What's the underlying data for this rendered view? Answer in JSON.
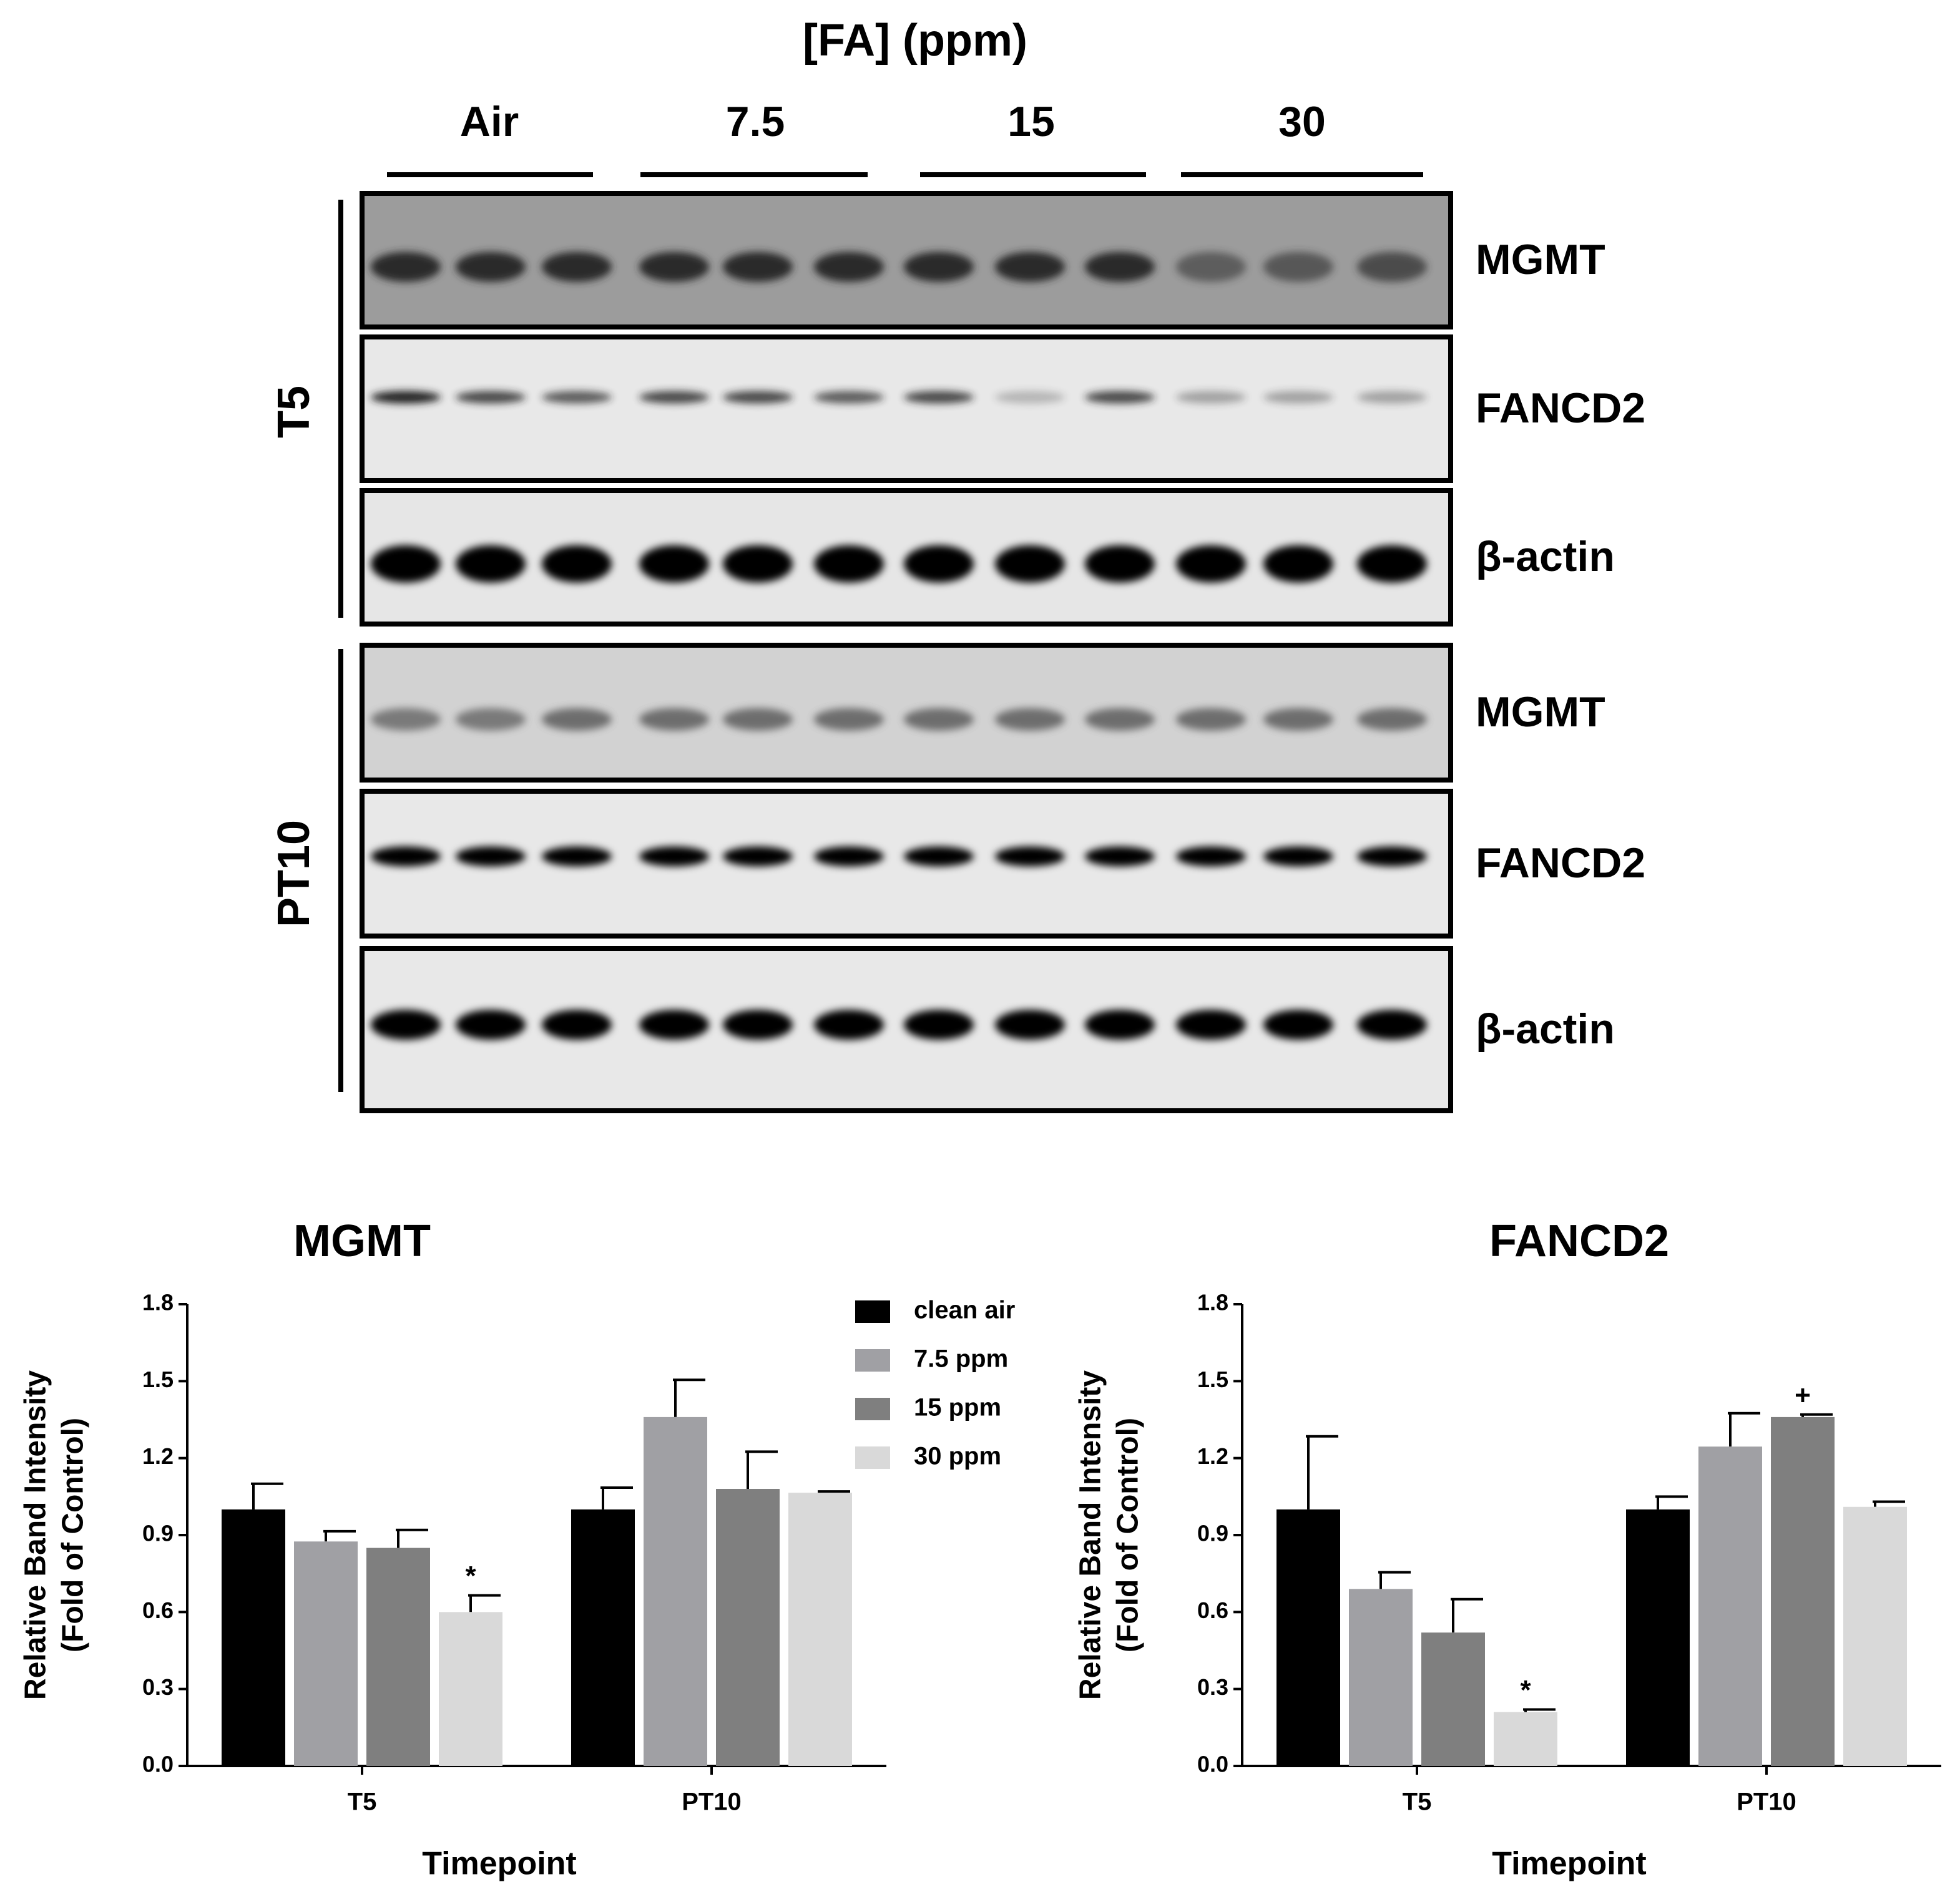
{
  "blot": {
    "title": "[FA] (ppm)",
    "groups": [
      "Air",
      "7.5",
      "15",
      "30"
    ],
    "timepoints": [
      "T5",
      "PT10"
    ],
    "proteins": [
      "MGMT",
      "FANCD2",
      "β-actin",
      "MGMT",
      "FANCD2",
      "β-actin"
    ]
  },
  "chart_data": [
    {
      "type": "bar",
      "title": "MGMT",
      "ylabel": [
        "Relative Band Intensity",
        "(Fold of Control)"
      ],
      "xlabel": "Timepoint",
      "categories": [
        "T5",
        "PT10"
      ],
      "ylim": [
        0,
        1.8
      ],
      "yticks": [
        {
          "value": 0,
          "label": "0.0"
        },
        0.3,
        0.6,
        0.9,
        1.2,
        1.5,
        1.8
      ],
      "legend": true,
      "series": [
        {
          "name": "clean air",
          "color": "#000000",
          "values": [
            1.0,
            1.0
          ],
          "errors": [
            0.1,
            0.085
          ]
        },
        {
          "name": "7.5 ppm",
          "color": "#a0a0a4",
          "values": [
            0.875,
            1.36
          ],
          "errors": [
            0.04,
            0.145
          ]
        },
        {
          "name": "15 ppm",
          "color": "#7f7f7f",
          "values": [
            0.85,
            1.08
          ],
          "errors": [
            0.07,
            0.145
          ]
        },
        {
          "name": "30 ppm",
          "color": "#d9d9d9",
          "values": [
            0.6,
            1.065
          ],
          "errors": [
            0.065,
            0.005
          ],
          "markers": [
            "*",
            null
          ]
        }
      ]
    },
    {
      "type": "bar",
      "title": "FANCD2",
      "ylabel": [
        "Relative Band Intensity",
        "(Fold of Control)"
      ],
      "xlabel": "Timepoint",
      "categories": [
        "T5",
        "PT10"
      ],
      "ylim": [
        0,
        1.8
      ],
      "yticks": [
        {
          "value": 0,
          "label": "0.0"
        },
        0.3,
        0.6,
        0.9,
        1.2,
        1.5,
        1.8
      ],
      "legend": false,
      "series": [
        {
          "color": "#000000",
          "values": [
            1.0,
            1.0
          ],
          "errors": [
            0.285,
            0.05
          ]
        },
        {
          "color": "#a0a0a4",
          "values": [
            0.69,
            1.245
          ],
          "errors": [
            0.065,
            0.13
          ]
        },
        {
          "color": "#7f7f7f",
          "values": [
            0.52,
            1.36
          ],
          "errors": [
            0.13,
            0.01
          ],
          "markers": [
            null,
            "+"
          ]
        },
        {
          "color": "#d9d9d9",
          "values": [
            0.21,
            1.01
          ],
          "errors": [
            0.01,
            0.02
          ],
          "markers": [
            "*",
            null
          ]
        }
      ]
    }
  ]
}
